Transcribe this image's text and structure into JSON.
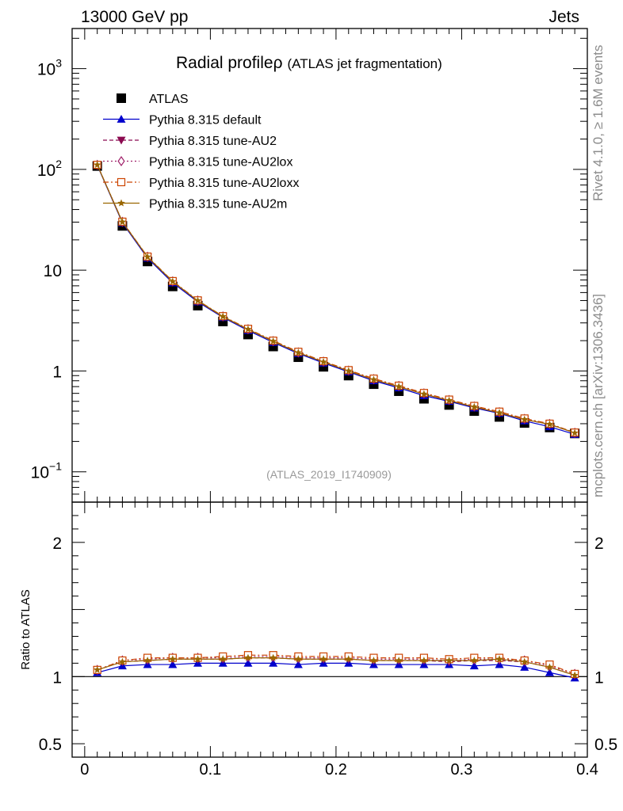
{
  "header": {
    "left": "13000 GeV pp",
    "right": "Jets"
  },
  "side": {
    "rivet": "Rivet 4.1.0, ≥ 1.6M events",
    "mcplots": "mcplots.cern.ch [arXiv:1306.3436]"
  },
  "chart_data": {
    "type": "scatter",
    "title": "Radial profileρ",
    "subtitle": "(ATLAS jet fragmentation)",
    "analysis_tag": "(ATLAS_2019_I1740909)",
    "xlabel": "",
    "ylabel_ratio": "Ratio to ATLAS",
    "xlim": [
      -0.01,
      0.4
    ],
    "ylim_main": [
      0.05,
      2500
    ],
    "ylim_ratio": [
      0.4,
      2.3
    ],
    "yscale_main": "log",
    "x_ticks": [
      "0",
      "0.1",
      "0.2",
      "0.3",
      "0.4"
    ],
    "y_ticks_main": [
      {
        "v": 0.1,
        "base": "10",
        "exp": "−1"
      },
      {
        "v": 1,
        "base": "1",
        "exp": ""
      },
      {
        "v": 10,
        "base": "10",
        "exp": ""
      },
      {
        "v": 100,
        "base": "10",
        "exp": "2"
      },
      {
        "v": 1000,
        "base": "10",
        "exp": "3"
      }
    ],
    "y_ticks_ratio": [
      {
        "v": 0.5,
        "label": "0.5"
      },
      {
        "v": 1,
        "label": "1"
      },
      {
        "v": 2,
        "label": "2"
      }
    ],
    "x": [
      0.01,
      0.03,
      0.05,
      0.07,
      0.09,
      0.11,
      0.13,
      0.15,
      0.17,
      0.19,
      0.21,
      0.23,
      0.25,
      0.27,
      0.29,
      0.31,
      0.33,
      0.35,
      0.37,
      0.39
    ],
    "data": {
      "name": "ATLAS",
      "color": "#000000",
      "values": [
        108,
        27.5,
        12.2,
        6.9,
        4.45,
        3.1,
        2.3,
        1.75,
        1.37,
        1.1,
        0.9,
        0.74,
        0.63,
        0.53,
        0.46,
        0.4,
        0.35,
        0.305,
        0.275,
        0.24
      ]
    },
    "series": [
      {
        "name": "Pythia 8.315 default",
        "color": "#0000cc",
        "dash": "",
        "marker": "triangle-up",
        "values": [
          110,
          29.5,
          13.2,
          7.5,
          4.85,
          3.4,
          2.52,
          1.92,
          1.49,
          1.2,
          0.98,
          0.8,
          0.68,
          0.57,
          0.5,
          0.43,
          0.38,
          0.32,
          0.28,
          0.235
        ],
        "ratio": [
          1.03,
          1.08,
          1.09,
          1.09,
          1.1,
          1.1,
          1.1,
          1.1,
          1.09,
          1.1,
          1.1,
          1.09,
          1.09,
          1.09,
          1.09,
          1.08,
          1.09,
          1.07,
          1.03,
          0.99
        ]
      },
      {
        "name": "Pythia 8.315 tune-AU2",
        "color": "#8b0a50",
        "dash": "5,3",
        "marker": "triangle-down",
        "values": [
          111,
          30,
          13.5,
          7.7,
          4.95,
          3.45,
          2.58,
          1.97,
          1.52,
          1.23,
          1.0,
          0.82,
          0.7,
          0.59,
          0.51,
          0.44,
          0.385,
          0.33,
          0.295,
          0.243
        ],
        "ratio": [
          1.05,
          1.11,
          1.12,
          1.13,
          1.13,
          1.13,
          1.14,
          1.14,
          1.13,
          1.13,
          1.13,
          1.12,
          1.12,
          1.12,
          1.11,
          1.12,
          1.12,
          1.11,
          1.07,
          1.01
        ]
      },
      {
        "name": "Pythia 8.315 tune-AU2lox",
        "color": "#a0206a",
        "dash": "2,3",
        "marker": "diamond-open",
        "values": [
          111,
          30.2,
          13.6,
          7.75,
          5.0,
          3.48,
          2.6,
          1.98,
          1.53,
          1.24,
          1.01,
          0.83,
          0.71,
          0.6,
          0.515,
          0.445,
          0.39,
          0.335,
          0.298,
          0.244
        ],
        "ratio": [
          1.05,
          1.12,
          1.13,
          1.14,
          1.14,
          1.14,
          1.15,
          1.15,
          1.14,
          1.14,
          1.14,
          1.13,
          1.13,
          1.13,
          1.12,
          1.13,
          1.13,
          1.12,
          1.08,
          1.02
        ]
      },
      {
        "name": "Pythia 8.315 tune-AU2loxx",
        "color": "#cc4400",
        "dash": "7,3,2,3",
        "marker": "square-open",
        "values": [
          111,
          30.3,
          13.65,
          7.8,
          5.02,
          3.5,
          2.62,
          2.0,
          1.55,
          1.25,
          1.02,
          0.84,
          0.715,
          0.605,
          0.52,
          0.45,
          0.395,
          0.338,
          0.3,
          0.245
        ],
        "ratio": [
          1.05,
          1.12,
          1.14,
          1.14,
          1.14,
          1.15,
          1.16,
          1.16,
          1.15,
          1.15,
          1.15,
          1.14,
          1.14,
          1.14,
          1.13,
          1.14,
          1.14,
          1.12,
          1.09,
          1.02
        ]
      },
      {
        "name": "Pythia 8.315 tune-AU2m",
        "color": "#996600",
        "dash": "",
        "marker": "star",
        "values": [
          111,
          30.1,
          13.55,
          7.72,
          4.98,
          3.47,
          2.59,
          1.97,
          1.52,
          1.23,
          1.0,
          0.82,
          0.7,
          0.59,
          0.51,
          0.44,
          0.385,
          0.33,
          0.296,
          0.243
        ],
        "ratio": [
          1.05,
          1.11,
          1.12,
          1.13,
          1.13,
          1.13,
          1.14,
          1.14,
          1.13,
          1.13,
          1.13,
          1.12,
          1.12,
          1.12,
          1.12,
          1.12,
          1.13,
          1.11,
          1.07,
          1.01
        ]
      }
    ]
  }
}
